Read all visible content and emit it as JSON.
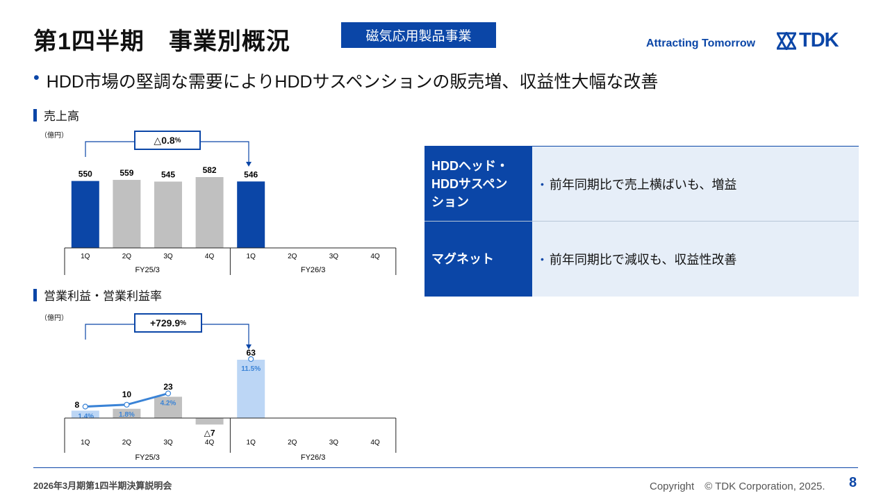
{
  "header": {
    "title": "第1四半期　事業別概況",
    "segment": "磁気応用製品事業",
    "tagline": "Attracting Tomorrow",
    "logo_text": "TDK"
  },
  "bullet": "HDD市場の堅調な需要によりHDDサスペンションの販売増、収益性大幅な改善",
  "sales_section": {
    "heading": "売上高",
    "unit": "（億円）",
    "change": "△0.8",
    "change_unit": "%"
  },
  "profit_section": {
    "heading": "営業利益・営業利益率",
    "unit": "（億円）",
    "change": "+729.9",
    "change_unit": "%"
  },
  "table": {
    "rows": [
      {
        "head_lines": [
          "HDDヘッド・",
          "HDDサスペン",
          "ション"
        ],
        "body": "前年同期比で売上横ばいも、増益"
      },
      {
        "head_lines": [
          "マグネット"
        ],
        "body": "前年同期比で減収も、収益性改善"
      }
    ]
  },
  "footer": {
    "left": "2026年3月期第1四半期決算説明会",
    "copyright": "Copyright　© TDK Corporation, 2025.",
    "page": "8"
  },
  "colors": {
    "brand": "#0b46a7",
    "gray_bar": "#c0c0c0",
    "light_blue": "#bcd6f5",
    "line": "#3a83d6"
  },
  "chart_data": [
    {
      "type": "bar",
      "title": "売上高",
      "ylabel": "（億円）",
      "categories": [
        "1Q",
        "2Q",
        "3Q",
        "4Q",
        "1Q",
        "2Q",
        "3Q",
        "4Q"
      ],
      "groups": [
        "FY25/3",
        "FY26/3"
      ],
      "values": [
        550,
        559,
        545,
        582,
        546,
        null,
        null,
        null
      ],
      "labels": [
        "550",
        "559",
        "545",
        "582",
        "546"
      ]
    },
    {
      "type": "bar",
      "title": "営業利益・営業利益率",
      "ylabel": "（億円）",
      "categories": [
        "1Q",
        "2Q",
        "3Q",
        "4Q",
        "1Q",
        "2Q",
        "3Q",
        "4Q"
      ],
      "groups": [
        "FY25/3",
        "FY26/3"
      ],
      "values": [
        8,
        10,
        23,
        -7,
        63,
        null,
        null,
        null
      ],
      "labels": [
        "8",
        "10",
        "23",
        "△7",
        "63"
      ],
      "margin": [
        1.4,
        1.8,
        4.2,
        null,
        11.5,
        null,
        null,
        null
      ],
      "margin_labels": [
        "1.4%",
        "1.8%",
        "4.2%",
        "",
        "11.5%"
      ]
    }
  ]
}
